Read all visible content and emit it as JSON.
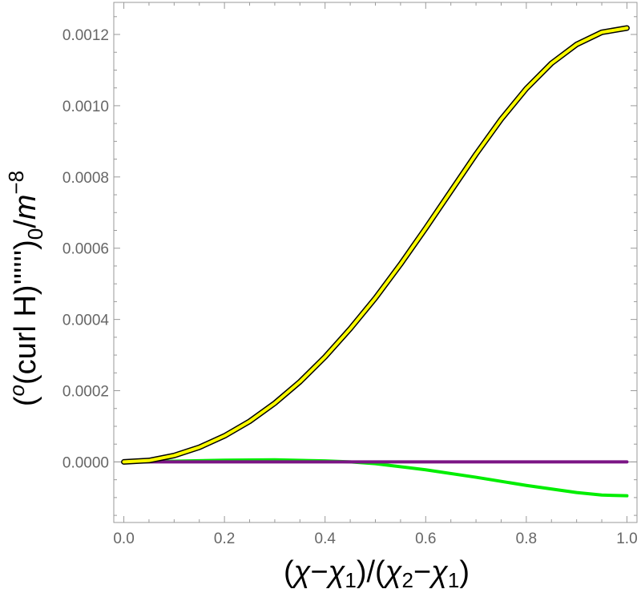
{
  "chart_data": {
    "type": "line",
    "xlabel": "(χ−χ₁)/(χ₂−χ₁)",
    "ylabel": "(°(curl H)'''''')₀/m⁻⁸",
    "xlabel_parts": {
      "open": "(",
      "chi": "χ",
      "minus": "−",
      "chi1": "χ",
      "sub1": "1",
      "mid": ")/(",
      "chi2": "χ",
      "sub2": "2",
      "minus2": "−",
      "chi3": "χ",
      "sub3": "1",
      "close": ")"
    },
    "ylabel_parts": {
      "open": "(",
      "sup_circ": "o",
      "body": "(curl H)'''''')",
      "sub0": "0",
      "slash": "/",
      "m": "m",
      "sup": "−8"
    },
    "xlim": [
      -0.02,
      1.02
    ],
    "ylim": [
      -0.00017,
      0.00129
    ],
    "x_ticks": [
      "0.0",
      "0.2",
      "0.4",
      "0.6",
      "0.8",
      "1.0"
    ],
    "x_tick_values": [
      0.0,
      0.2,
      0.4,
      0.6,
      0.8,
      1.0
    ],
    "y_ticks": [
      "0.0000",
      "0.0002",
      "0.0004",
      "0.0006",
      "0.0008",
      "0.0010",
      "0.0012"
    ],
    "y_tick_values": [
      0.0,
      0.0002,
      0.0004,
      0.0006,
      0.0008,
      0.001,
      0.0012
    ],
    "grid": false,
    "series": [
      {
        "color": "#ffff00",
        "outline": "#000000",
        "x": [
          0.0,
          0.05,
          0.1,
          0.15,
          0.2,
          0.25,
          0.3,
          0.35,
          0.4,
          0.45,
          0.5,
          0.55,
          0.6,
          0.65,
          0.7,
          0.75,
          0.8,
          0.85,
          0.9,
          0.95,
          1.0
        ],
        "y": [
          0.0,
          4e-06,
          1.8e-05,
          4.1e-05,
          7.3e-05,
          0.000114,
          0.000165,
          0.000225,
          0.000295,
          0.000374,
          0.00046,
          0.000555,
          0.000656,
          0.00076,
          0.000864,
          0.000962,
          0.001048,
          0.001119,
          0.001172,
          0.001206,
          0.001218
        ]
      },
      {
        "color": "#00ee00",
        "x": [
          0.0,
          0.1,
          0.2,
          0.3,
          0.4,
          0.45,
          0.5,
          0.6,
          0.7,
          0.8,
          0.9,
          0.95,
          1.0
        ],
        "y": [
          0.0,
          2e-06,
          5e-06,
          6e-06,
          3e-06,
          0.0,
          -5e-06,
          -2.2e-05,
          -4.3e-05,
          -6.6e-05,
          -8.6e-05,
          -9.3e-05,
          -9.5e-05
        ]
      },
      {
        "color": "#7b1585",
        "x": [
          0.0,
          0.5,
          1.0
        ],
        "y": [
          0.0,
          0.0,
          0.0
        ]
      }
    ]
  }
}
